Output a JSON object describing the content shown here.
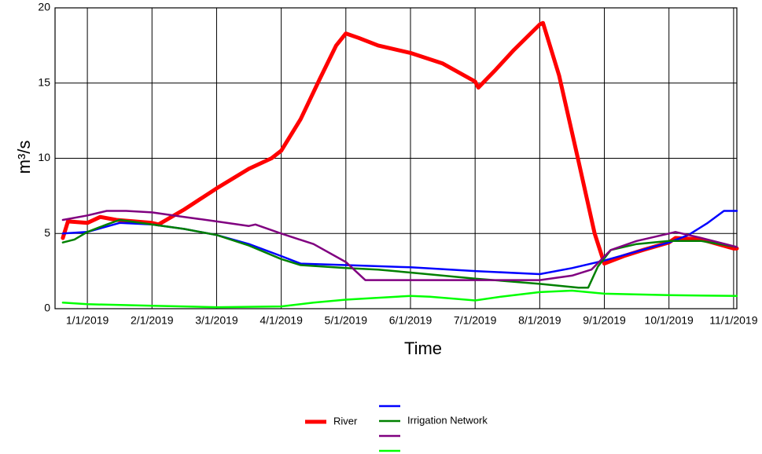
{
  "chart_data": {
    "type": "line",
    "x_label": "Time",
    "y_label": "m³/s",
    "xlim": [
      -0.5,
      10.05
    ],
    "xticks": [
      {
        "value": 0,
        "label": "1/1/2019"
      },
      {
        "value": 1,
        "label": "2/1/2019"
      },
      {
        "value": 2,
        "label": "3/1/2019"
      },
      {
        "value": 3,
        "label": "4/1/2019"
      },
      {
        "value": 4,
        "label": "5/1/2019"
      },
      {
        "value": 5,
        "label": "6/1/2019"
      },
      {
        "value": 6,
        "label": "7/1/2019"
      },
      {
        "value": 7,
        "label": "8/1/2019"
      },
      {
        "value": 8,
        "label": "9/1/2019"
      },
      {
        "value": 9,
        "label": "10/1/2019"
      },
      {
        "value": 10,
        "label": "11/1/2019"
      }
    ],
    "ylim": [
      0,
      20
    ],
    "yticks": [
      0,
      5,
      10,
      15,
      20
    ],
    "grid": true,
    "series": [
      {
        "name": "River",
        "color": "#ff0000",
        "width": 5,
        "x": [
          -0.38,
          -0.3,
          0,
          0.2,
          0.45,
          1,
          1.1,
          1.5,
          2,
          2.5,
          2.85,
          3,
          3.3,
          3.6,
          3.85,
          4,
          4.2,
          4.5,
          5,
          5.5,
          6,
          6.05,
          6.3,
          6.6,
          7,
          7.05,
          7.3,
          7.6,
          7.85,
          8,
          8.3,
          8.6,
          9,
          9.1,
          9.5,
          10,
          10.05
        ],
        "values": [
          4.7,
          5.8,
          5.7,
          6.1,
          5.9,
          5.7,
          5.6,
          6.6,
          8.0,
          9.3,
          10.0,
          10.5,
          12.6,
          15.3,
          17.5,
          18.3,
          18.0,
          17.5,
          17.0,
          16.3,
          15.1,
          14.7,
          15.8,
          17.2,
          18.9,
          19.0,
          15.5,
          9.8,
          5.0,
          3.0,
          3.5,
          3.9,
          4.4,
          4.7,
          4.6,
          4.0,
          4.0
        ]
      },
      {
        "color": "#0000ff",
        "width": 2.5,
        "x": [
          -0.38,
          0,
          0.5,
          1,
          1.5,
          2,
          2.5,
          3,
          3.3,
          4,
          5,
          6,
          7,
          7.5,
          8,
          8.5,
          9,
          9.3,
          9.6,
          9.85,
          10.05
        ],
        "values": [
          5.0,
          5.1,
          5.7,
          5.6,
          5.3,
          4.9,
          4.3,
          3.5,
          3.0,
          2.9,
          2.75,
          2.5,
          2.3,
          2.7,
          3.2,
          3.8,
          4.4,
          4.9,
          5.7,
          6.5,
          6.5
        ]
      },
      {
        "name": "Irrigation Network",
        "color": "#008000",
        "width": 2.5,
        "x": [
          -0.38,
          -0.2,
          0,
          0.3,
          0.5,
          1,
          1.5,
          2,
          2.5,
          3,
          3.3,
          4,
          4.5,
          5,
          6,
          7,
          7.6,
          7.75,
          7.9,
          8.1,
          8.5,
          9,
          9.5,
          10.05
        ],
        "values": [
          4.4,
          4.6,
          5.1,
          5.6,
          5.9,
          5.6,
          5.3,
          4.9,
          4.2,
          3.3,
          2.9,
          2.7,
          2.6,
          2.4,
          2.0,
          1.65,
          1.4,
          1.4,
          2.8,
          3.9,
          4.3,
          4.5,
          4.5,
          4.1
        ]
      },
      {
        "color": "#800080",
        "width": 2.5,
        "x": [
          -0.38,
          0,
          0.3,
          0.6,
          1,
          1.5,
          2,
          2.5,
          2.6,
          3,
          3.5,
          4,
          4.3,
          5,
          6,
          7,
          7.5,
          7.8,
          8.1,
          8.5,
          9,
          9.1,
          9.5,
          10.05
        ],
        "values": [
          5.9,
          6.2,
          6.5,
          6.5,
          6.4,
          6.1,
          5.8,
          5.5,
          5.6,
          5.0,
          4.3,
          3.1,
          1.9,
          1.9,
          1.9,
          1.9,
          2.2,
          2.6,
          3.9,
          4.5,
          5.0,
          5.1,
          4.7,
          4.1
        ]
      },
      {
        "color": "#00ff00",
        "width": 2.5,
        "x": [
          -0.38,
          0,
          1,
          2,
          3,
          3.5,
          4,
          5,
          5.3,
          6,
          6.4,
          7,
          7.5,
          8,
          9,
          10.05
        ],
        "values": [
          0.4,
          0.3,
          0.2,
          0.1,
          0.15,
          0.4,
          0.6,
          0.85,
          0.8,
          0.55,
          0.8,
          1.1,
          1.2,
          1.0,
          0.9,
          0.85
        ]
      }
    ]
  }
}
